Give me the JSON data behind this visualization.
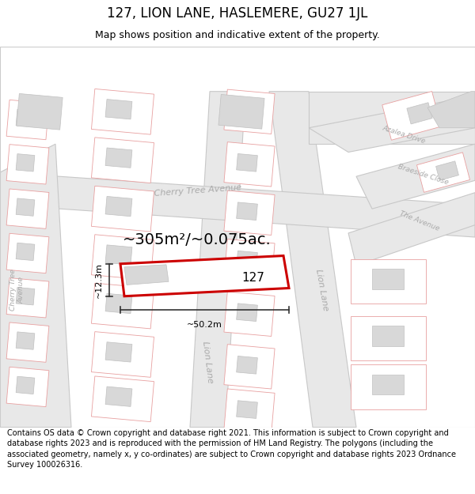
{
  "title": "127, LION LANE, HASLEMERE, GU27 1JL",
  "subtitle": "Map shows position and indicative extent of the property.",
  "footer": "Contains OS data © Crown copyright and database right 2021. This information is subject to Crown copyright and database rights 2023 and is reproduced with the permission of HM Land Registry. The polygons (including the associated geometry, namely x, y co-ordinates) are subject to Crown copyright and database rights 2023 Ordnance Survey 100026316.",
  "area_text": "~305m²/~0.075ac.",
  "width_text": "~50.2m",
  "height_text": "~12.3m",
  "house_number": "127",
  "bg_color": "#ffffff",
  "road_fill": "#e8e8e8",
  "road_edge": "#c8c8c8",
  "parcel_fill": "#ffffff",
  "parcel_edge": "#e8a0a0",
  "building_fill": "#d8d8d8",
  "building_edge": "#c0c0c0",
  "highlight_fill": "#ffffff",
  "highlight_edge": "#cc0000",
  "road_label_color": "#aaaaaa",
  "dim_color": "#333333",
  "title_fontsize": 12,
  "subtitle_fontsize": 9,
  "footer_fontsize": 7,
  "area_fontsize": 14,
  "dim_fontsize": 8,
  "label_fontsize": 8
}
